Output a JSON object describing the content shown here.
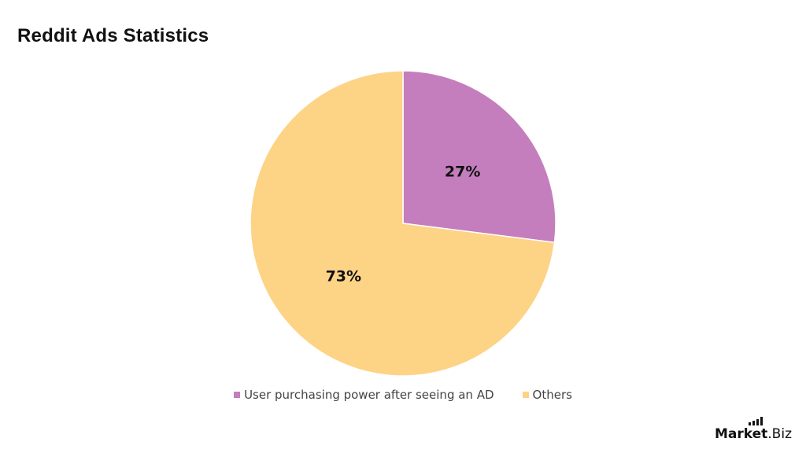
{
  "title": "Reddit Ads Statistics",
  "legend": {
    "items": [
      {
        "label": "User purchasing power after seeing an AD",
        "color": "#C47EBD"
      },
      {
        "label": "Others",
        "color": "#FDD386"
      }
    ]
  },
  "slices": [
    {
      "label": "27%",
      "color": "#C47EBD"
    },
    {
      "label": "73%",
      "color": "#FDD386"
    }
  ],
  "logo": {
    "bold": "Market",
    "light": ".Biz"
  },
  "chart_data": {
    "type": "pie",
    "title": "Reddit Ads Statistics",
    "categories": [
      "User purchasing power after seeing an AD",
      "Others"
    ],
    "values": [
      27,
      73
    ],
    "unit": "%",
    "colors": [
      "#C47EBD",
      "#FDD386"
    ],
    "data_labels": [
      "27%",
      "73%"
    ],
    "start_angle": "12 o'clock, clockwise",
    "legend_position": "bottom"
  }
}
